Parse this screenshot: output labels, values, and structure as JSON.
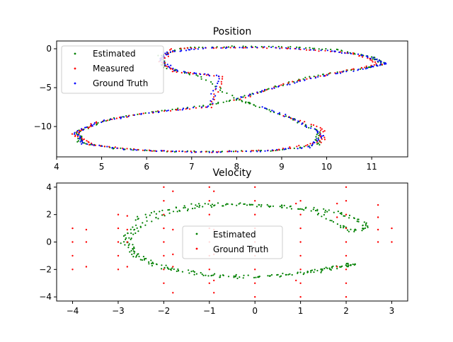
{
  "chart_data": [
    {
      "type": "scatter",
      "title": "Position",
      "xlabel": "",
      "ylabel": "",
      "xlim": [
        4.0,
        11.8
      ],
      "ylim": [
        -13.9,
        1.0
      ],
      "xticks": [
        4,
        5,
        6,
        7,
        8,
        9,
        10,
        11
      ],
      "yticks": [
        0,
        -5,
        -10
      ],
      "grid": false,
      "legend_position": "upper-left",
      "series": [
        {
          "name": "Estimated",
          "color": "#008000",
          "marker": "dot",
          "description_points": "dense figure-eight trajectory; sampled outline",
          "points": [
            [
              8.0,
              -6.5
            ],
            [
              8.9,
              -4.8
            ],
            [
              9.8,
              -3.4
            ],
            [
              10.8,
              -2.5
            ],
            [
              11.3,
              -2.0
            ],
            [
              11.0,
              -1.0
            ],
            [
              10.2,
              -0.1
            ],
            [
              9.2,
              0.2
            ],
            [
              8.0,
              0.3
            ],
            [
              6.8,
              0.1
            ],
            [
              6.3,
              -0.9
            ],
            [
              6.4,
              -2.4
            ],
            [
              7.2,
              -3.6
            ],
            [
              8.0,
              -6.5
            ],
            [
              7.3,
              -7.3
            ],
            [
              6.3,
              -8.0
            ],
            [
              5.2,
              -9.0
            ],
            [
              4.5,
              -10.6
            ],
            [
              4.5,
              -12.0
            ],
            [
              5.3,
              -12.8
            ],
            [
              6.4,
              -13.2
            ],
            [
              7.6,
              -13.2
            ],
            [
              8.8,
              -13.1
            ],
            [
              9.8,
              -12.4
            ],
            [
              9.8,
              -10.6
            ],
            [
              9.2,
              -8.9
            ],
            [
              8.4,
              -7.2
            ],
            [
              8.0,
              -6.5
            ]
          ]
        },
        {
          "name": "Measured",
          "color": "#ff0000",
          "marker": "dot",
          "points": [
            [
              8.0,
              -6.6
            ],
            [
              9.0,
              -4.6
            ],
            [
              10.1,
              -3.2
            ],
            [
              11.2,
              -2.0
            ],
            [
              10.6,
              -0.6
            ],
            [
              9.3,
              0.0
            ],
            [
              7.9,
              0.2
            ],
            [
              6.6,
              0.0
            ],
            [
              6.3,
              -1.6
            ],
            [
              6.6,
              -2.9
            ],
            [
              7.7,
              -3.6
            ],
            [
              7.4,
              -7.5
            ],
            [
              6.2,
              -8.1
            ],
            [
              4.9,
              -9.4
            ],
            [
              4.4,
              -11.0
            ],
            [
              4.8,
              -12.4
            ],
            [
              6.0,
              -13.1
            ],
            [
              7.4,
              -13.3
            ],
            [
              8.9,
              -13.0
            ],
            [
              9.9,
              -12.0
            ],
            [
              9.9,
              -10.3
            ],
            [
              9.0,
              -8.5
            ]
          ]
        },
        {
          "name": "Ground Truth",
          "color": "#0000ff",
          "marker": "dot",
          "points": [
            [
              8.0,
              -6.4
            ],
            [
              8.9,
              -4.9
            ],
            [
              9.9,
              -3.5
            ],
            [
              10.9,
              -2.5
            ],
            [
              11.3,
              -1.9
            ],
            [
              10.9,
              -0.9
            ],
            [
              10.0,
              -0.2
            ],
            [
              8.6,
              0.2
            ],
            [
              7.3,
              0.1
            ],
            [
              6.5,
              -0.4
            ],
            [
              6.3,
              -1.5
            ],
            [
              6.7,
              -2.9
            ],
            [
              7.6,
              -3.5
            ],
            [
              7.4,
              -7.4
            ],
            [
              6.1,
              -8.2
            ],
            [
              5.0,
              -9.3
            ],
            [
              4.4,
              -10.8
            ],
            [
              4.6,
              -12.2
            ],
            [
              5.6,
              -13.0
            ],
            [
              7.0,
              -13.3
            ],
            [
              8.4,
              -13.2
            ],
            [
              9.6,
              -12.7
            ],
            [
              9.9,
              -11.0
            ],
            [
              9.3,
              -9.1
            ],
            [
              8.5,
              -7.3
            ]
          ]
        }
      ]
    },
    {
      "type": "scatter",
      "title": "Velocity",
      "xlabel": "",
      "ylabel": "",
      "xlim": [
        -4.35,
        3.35
      ],
      "ylim": [
        -4.3,
        4.3
      ],
      "xticks": [
        -4,
        -3,
        -2,
        -1,
        0,
        1,
        2,
        3
      ],
      "yticks": [
        4,
        2,
        0,
        -2,
        -4
      ],
      "grid": false,
      "legend_position": "center",
      "series": [
        {
          "name": "Estimated",
          "color": "#008000",
          "marker": "dot",
          "points": [
            [
              -2.6,
              1.2
            ],
            [
              -2.9,
              0.2
            ],
            [
              -2.7,
              -0.8
            ],
            [
              -2.2,
              -1.6
            ],
            [
              -1.6,
              -2.1
            ],
            [
              -0.9,
              -2.4
            ],
            [
              0.0,
              -2.5
            ],
            [
              0.8,
              -2.4
            ],
            [
              1.5,
              -2.1
            ],
            [
              2.0,
              -1.7
            ],
            [
              2.2,
              -1.6
            ],
            [
              1.6,
              -1.9
            ],
            [
              0.9,
              -2.3
            ],
            [
              -0.2,
              -2.6
            ],
            [
              -1.2,
              -2.4
            ],
            [
              -2.0,
              -1.9
            ],
            [
              -2.6,
              -1.1
            ],
            [
              -2.8,
              0.0
            ],
            [
              -2.5,
              1.2
            ],
            [
              -1.9,
              2.1
            ],
            [
              -1.2,
              2.6
            ],
            [
              -0.4,
              2.7
            ],
            [
              0.5,
              2.6
            ],
            [
              1.3,
              2.4
            ],
            [
              1.9,
              2.1
            ],
            [
              2.3,
              1.5
            ],
            [
              2.5,
              1.0
            ],
            [
              2.1,
              0.8
            ],
            [
              1.8,
              1.3
            ],
            [
              1.3,
              2.3
            ],
            [
              0.4,
              2.6
            ],
            [
              -0.5,
              2.8
            ],
            [
              -1.4,
              2.7
            ],
            [
              -2.2,
              2.2
            ],
            [
              -2.7,
              1.5
            ]
          ]
        },
        {
          "name": "Ground Truth",
          "color": "#ff0000",
          "marker": "dot",
          "points": [
            [
              -4.0,
              1.0
            ],
            [
              -4.0,
              0.0
            ],
            [
              -4.0,
              -1.0
            ],
            [
              -4.0,
              -2.0
            ],
            [
              -3.7,
              0.9
            ],
            [
              -3.7,
              0.0
            ],
            [
              -3.7,
              -1.8
            ],
            [
              -3.0,
              2.0
            ],
            [
              -3.0,
              1.0
            ],
            [
              -3.0,
              0.0
            ],
            [
              -3.0,
              -1.0
            ],
            [
              -3.0,
              -2.0
            ],
            [
              -2.8,
              1.9
            ],
            [
              -2.8,
              0.9
            ],
            [
              -2.8,
              0.0
            ],
            [
              -2.8,
              -1.8
            ],
            [
              -2.0,
              4.0
            ],
            [
              -2.0,
              3.0
            ],
            [
              -2.0,
              2.0
            ],
            [
              -2.0,
              1.0
            ],
            [
              -2.0,
              0.0
            ],
            [
              -2.0,
              -1.0
            ],
            [
              -2.0,
              -2.0
            ],
            [
              -2.0,
              -3.0
            ],
            [
              -1.8,
              3.7
            ],
            [
              -1.8,
              0.9
            ],
            [
              -1.8,
              -0.9
            ],
            [
              -1.8,
              -1.8
            ],
            [
              -1.8,
              -3.7
            ],
            [
              -1.0,
              4.0
            ],
            [
              -1.0,
              3.0
            ],
            [
              -1.0,
              2.0
            ],
            [
              -1.0,
              1.0
            ],
            [
              -1.0,
              0.0
            ],
            [
              -1.0,
              -1.0
            ],
            [
              -1.0,
              -2.0
            ],
            [
              -1.0,
              -3.0
            ],
            [
              -0.9,
              3.7
            ],
            [
              -0.9,
              0.9
            ],
            [
              -0.9,
              -0.9
            ],
            [
              -0.9,
              -2.8
            ],
            [
              -0.9,
              -3.7
            ],
            [
              0.0,
              4.0
            ],
            [
              0.0,
              3.0
            ],
            [
              0.0,
              2.0
            ],
            [
              0.0,
              1.0
            ],
            [
              0.0,
              0.0
            ],
            [
              0.0,
              -1.0
            ],
            [
              0.0,
              -2.0
            ],
            [
              0.0,
              -3.0
            ],
            [
              0.0,
              -4.0
            ],
            [
              1.0,
              3.0
            ],
            [
              1.0,
              2.0
            ],
            [
              1.0,
              1.0
            ],
            [
              1.0,
              0.0
            ],
            [
              1.0,
              -1.0
            ],
            [
              1.0,
              -2.0
            ],
            [
              1.0,
              -3.0
            ],
            [
              1.0,
              -4.0
            ],
            [
              0.9,
              2.8
            ],
            [
              0.9,
              -2.8
            ],
            [
              2.0,
              4.0
            ],
            [
              2.0,
              3.0
            ],
            [
              2.0,
              2.0
            ],
            [
              2.0,
              1.0
            ],
            [
              2.0,
              0.0
            ],
            [
              2.0,
              -1.0
            ],
            [
              2.0,
              -2.0
            ],
            [
              2.0,
              -3.0
            ],
            [
              2.0,
              -4.0
            ],
            [
              1.8,
              2.8
            ],
            [
              1.8,
              1.8
            ],
            [
              1.8,
              -1.8
            ],
            [
              2.7,
              2.7
            ],
            [
              2.7,
              1.8
            ],
            [
              2.7,
              0.9
            ],
            [
              2.7,
              0.0
            ],
            [
              3.0,
              1.0
            ],
            [
              3.0,
              0.0
            ]
          ]
        }
      ]
    }
  ]
}
